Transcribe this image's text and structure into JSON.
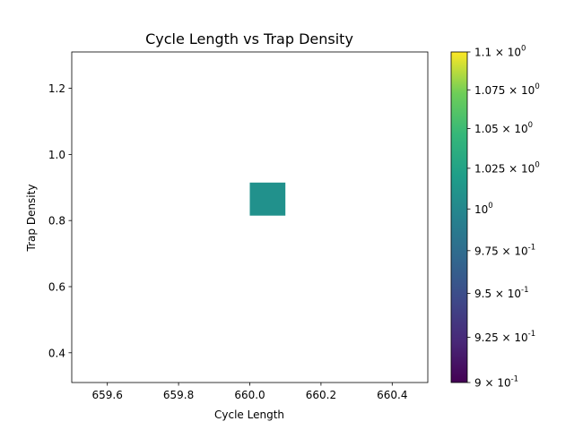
{
  "chart_data": {
    "type": "heatmap",
    "title": "Cycle Length vs Trap Density",
    "xlabel": "Cycle Length",
    "ylabel": "Trap Density",
    "xlim": [
      659.5,
      660.5
    ],
    "ylim": [
      0.31,
      1.31
    ],
    "x_ticks": [
      659.6,
      659.8,
      660.0,
      660.2,
      660.4
    ],
    "x_tick_labels": [
      "659.6",
      "659.8",
      "660.0",
      "660.2",
      "660.4"
    ],
    "y_ticks": [
      0.4,
      0.6,
      0.8,
      1.0,
      1.2
    ],
    "y_tick_labels": [
      "0.4",
      "0.6",
      "0.8",
      "1.0",
      "1.2"
    ],
    "cells": [
      {
        "x0": 660.0,
        "x1": 660.1,
        "y0": 0.815,
        "y1": 0.915,
        "value": 1.0
      }
    ],
    "colorbar": {
      "scale": "log",
      "cmap": "viridis",
      "range": [
        0.9,
        1.1
      ],
      "ticks": [
        {
          "value": 0.9,
          "mantissa": "9",
          "exponent": "-1"
        },
        {
          "value": 0.925,
          "mantissa": "9.25",
          "exponent": "-1"
        },
        {
          "value": 0.95,
          "mantissa": "9.5",
          "exponent": "-1"
        },
        {
          "value": 0.975,
          "mantissa": "9.75",
          "exponent": "-1"
        },
        {
          "value": 1.0,
          "mantissa": "",
          "exponent": "0"
        },
        {
          "value": 1.025,
          "mantissa": "1.025",
          "exponent": "0"
        },
        {
          "value": 1.05,
          "mantissa": "1.05",
          "exponent": "0"
        },
        {
          "value": 1.075,
          "mantissa": "1.075",
          "exponent": "0"
        },
        {
          "value": 1.1,
          "mantissa": "1.1",
          "exponent": "0"
        }
      ]
    },
    "colors": {
      "cell": "#21918c",
      "axis": "#000000",
      "background": "#ffffff"
    }
  }
}
